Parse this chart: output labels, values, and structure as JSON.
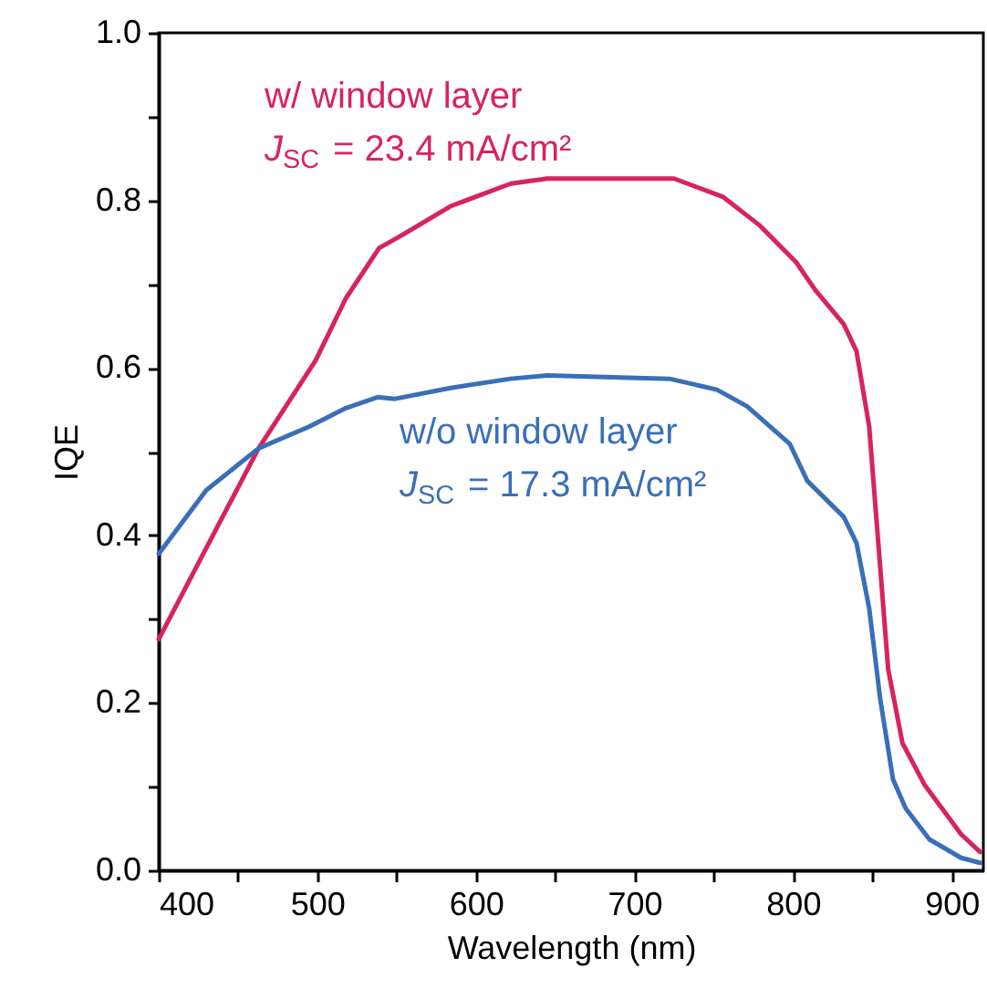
{
  "chart_data": {
    "type": "line",
    "xlabel": "Wavelength (nm)",
    "ylabel": "IQE",
    "xlim": [
      400,
      920
    ],
    "ylim": [
      0,
      1
    ],
    "xticks": [
      400,
      {
        "value": 450,
        "label": null
      },
      500,
      {
        "value": 550,
        "label": null
      },
      600,
      {
        "value": 650,
        "label": null
      },
      700,
      {
        "value": 750,
        "label": null
      },
      800,
      {
        "value": 850,
        "label": null
      },
      900
    ],
    "yticks": [
      {
        "value": 0,
        "label": "0.0"
      },
      {
        "value": 0.1,
        "label": null
      },
      {
        "value": 0.2,
        "label": "0.2"
      },
      {
        "value": 0.3,
        "label": null
      },
      {
        "value": 0.4,
        "label": "0.4"
      },
      {
        "value": 0.5,
        "label": null
      },
      {
        "value": 0.6,
        "label": "0.6"
      },
      {
        "value": 0.7,
        "label": null
      },
      {
        "value": 0.8,
        "label": "0.8"
      },
      {
        "value": 0.9,
        "label": null
      },
      {
        "value": 1,
        "label": "1.0"
      }
    ],
    "grid": false,
    "line_style": "solid",
    "marker": "none",
    "series": [
      {
        "name": "w/ window layer",
        "color": "#d6245f",
        "x": [
          400,
          430,
          463,
          499,
          518,
          539,
          553,
          584,
          622,
          645,
          725,
          756,
          779,
          802,
          814,
          832,
          840,
          848,
          854,
          860,
          869,
          883,
          906,
          918
        ],
        "values": [
          0.276,
          0.385,
          0.504,
          0.609,
          0.683,
          0.743,
          0.758,
          0.793,
          0.82,
          0.826,
          0.826,
          0.804,
          0.77,
          0.726,
          0.693,
          0.652,
          0.62,
          0.53,
          0.385,
          0.24,
          0.152,
          0.102,
          0.043,
          0.022
        ]
      },
      {
        "name": "w/o window layer",
        "color": "#3a6fb8",
        "x": [
          400,
          430,
          463,
          495,
          518,
          538,
          549,
          584,
          622,
          645,
          722,
          752,
          771,
          798,
          809,
          832,
          840,
          848,
          855,
          863,
          871,
          886,
          906,
          918
        ],
        "values": [
          0.378,
          0.454,
          0.504,
          0.53,
          0.552,
          0.565,
          0.563,
          0.576,
          0.587,
          0.591,
          0.587,
          0.574,
          0.554,
          0.509,
          0.465,
          0.422,
          0.391,
          0.313,
          0.204,
          0.109,
          0.074,
          0.037,
          0.015,
          0.009
        ]
      }
    ],
    "annotations": [
      "J$_{SC}$ = 23.4 mA/cm²",
      "J$_{SC}$ = 17.3 mA/cm²"
    ]
  }
}
